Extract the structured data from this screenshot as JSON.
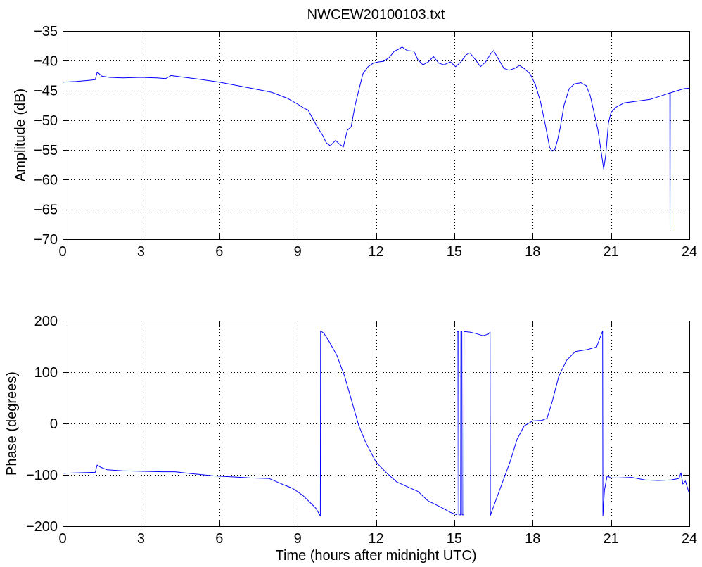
{
  "chart_data": [
    {
      "type": "line",
      "title": "NWCEW20100103.txt",
      "ylabel": "Amplitude (dB)",
      "xlim": [
        0,
        24
      ],
      "ylim": [
        -70,
        -35
      ],
      "xticks": [
        "0",
        "3",
        "6",
        "9",
        "12",
        "15",
        "18",
        "21",
        "24"
      ],
      "yticks": [
        "−70",
        "−65",
        "−60",
        "−55",
        "−50",
        "−45",
        "−40",
        "−35"
      ],
      "grid": true,
      "series": [
        {
          "color": "#0000ff",
          "x": [
            0,
            0.5,
            1.0,
            1.25,
            1.32,
            1.38,
            1.5,
            1.8,
            2.3,
            3.0,
            3.6,
            3.95,
            4.15,
            4.5,
            5.2,
            6.0,
            6.6,
            7.3,
            8.0,
            8.6,
            9.0,
            9.25,
            9.4,
            9.55,
            9.75,
            9.95,
            10.1,
            10.25,
            10.45,
            10.6,
            10.75,
            10.9,
            11.05,
            11.2,
            11.35,
            11.5,
            11.7,
            11.9,
            12.1,
            12.3,
            12.5,
            12.7,
            12.85,
            13.0,
            13.2,
            13.45,
            13.6,
            13.8,
            14.0,
            14.2,
            14.4,
            14.6,
            14.85,
            15.05,
            15.25,
            15.45,
            15.6,
            15.8,
            16.0,
            16.2,
            16.4,
            16.5,
            16.7,
            16.9,
            17.1,
            17.3,
            17.5,
            17.7,
            17.9,
            18.1,
            18.3,
            18.5,
            18.65,
            18.75,
            18.85,
            18.95,
            19.05,
            19.2,
            19.4,
            19.6,
            19.85,
            20.05,
            20.2,
            20.35,
            20.5,
            20.62,
            20.72,
            20.8,
            20.9,
            21.0,
            21.2,
            21.5,
            22.0,
            22.5,
            23.0,
            23.25,
            23.26,
            23.27,
            23.5,
            23.8,
            24.0
          ],
          "y": [
            -43.6,
            -43.5,
            -43.3,
            -43.2,
            -42.0,
            -42.1,
            -42.6,
            -42.8,
            -42.9,
            -42.8,
            -42.9,
            -43.0,
            -42.5,
            -42.7,
            -43.1,
            -43.6,
            -44.1,
            -44.7,
            -45.3,
            -46.3,
            -47.3,
            -48.0,
            -48.3,
            -49.5,
            -51.1,
            -52.5,
            -53.8,
            -54.3,
            -53.4,
            -54.0,
            -54.5,
            -51.7,
            -51.1,
            -47.5,
            -44.8,
            -42.2,
            -41.0,
            -40.4,
            -40.2,
            -40.1,
            -39.5,
            -38.4,
            -38.1,
            -37.7,
            -38.3,
            -38.4,
            -39.8,
            -40.7,
            -40.2,
            -39.3,
            -40.4,
            -40.7,
            -40.2,
            -41.0,
            -40.2,
            -39.0,
            -38.7,
            -39.8,
            -41.0,
            -40.2,
            -38.8,
            -38.3,
            -39.8,
            -41.3,
            -41.6,
            -41.3,
            -40.8,
            -41.4,
            -42.2,
            -44.0,
            -46.9,
            -51.1,
            -54.6,
            -55.2,
            -54.9,
            -53.4,
            -51.4,
            -47.5,
            -44.7,
            -43.9,
            -43.7,
            -44.2,
            -45.8,
            -48.7,
            -51.7,
            -55.2,
            -58.2,
            -55.8,
            -50.5,
            -48.7,
            -47.8,
            -47.1,
            -46.8,
            -46.5,
            -45.8,
            -45.4,
            -68.2,
            -45.4,
            -45.1,
            -44.7,
            -44.6
          ]
        }
      ]
    },
    {
      "type": "line",
      "xlabel": "Time (hours after midnight UTC)",
      "ylabel": "Phase (degrees)",
      "xlim": [
        0,
        24
      ],
      "ylim": [
        -200,
        200
      ],
      "xticks": [
        "0",
        "3",
        "6",
        "9",
        "12",
        "15",
        "18",
        "21",
        "24"
      ],
      "yticks": [
        "−200",
        "−100",
        "0",
        "100",
        "200"
      ],
      "grid": true,
      "series": [
        {
          "color": "#0000ff",
          "x": [
            0,
            0.6,
            1.25,
            1.32,
            1.45,
            1.7,
            2.3,
            3.0,
            3.8,
            4.3,
            5.0,
            5.8,
            6.5,
            7.2,
            7.9,
            8.4,
            8.8,
            9.2,
            9.5,
            9.7,
            9.87,
            9.88,
            10.0,
            10.2,
            10.5,
            10.8,
            11.07,
            11.34,
            11.6,
            12.0,
            12.4,
            12.8,
            13.2,
            13.6,
            14.0,
            14.45,
            14.85,
            15.1,
            15.11,
            15.16,
            15.17,
            15.24,
            15.25,
            15.29,
            15.3,
            15.36,
            15.37,
            15.6,
            15.85,
            16.1,
            16.3,
            16.37,
            16.38,
            16.6,
            16.87,
            17.13,
            17.4,
            17.67,
            18.0,
            18.35,
            18.55,
            18.75,
            19.0,
            19.3,
            19.63,
            20.1,
            20.45,
            20.63,
            20.68,
            20.69,
            20.75,
            20.85,
            21.0,
            21.3,
            21.8,
            22.3,
            22.8,
            23.3,
            23.6,
            23.68,
            23.75,
            23.85,
            24.0
          ],
          "y": [
            -97,
            -96,
            -95,
            -81,
            -85,
            -90,
            -92,
            -93,
            -94,
            -94,
            -98,
            -102,
            -104,
            -106,
            -107,
            -118,
            -126,
            -140,
            -155,
            -165,
            -180,
            180,
            176,
            160,
            133,
            92,
            44,
            -4,
            -36,
            -75,
            -96,
            -114,
            -123,
            -132,
            -151,
            -162,
            -173,
            -178,
            179,
            179,
            -178,
            -178,
            179,
            179,
            -178,
            -178,
            179,
            178,
            175,
            171,
            174,
            178,
            -179,
            -148,
            -111,
            -75,
            -31,
            -5,
            5,
            6,
            10,
            43,
            92,
            123,
            140,
            144,
            149,
            174,
            180,
            -180,
            -130,
            -102,
            -106,
            -106,
            -105,
            -110,
            -111,
            -110,
            -107,
            -96,
            -118,
            -112,
            -137
          ]
        }
      ]
    }
  ]
}
